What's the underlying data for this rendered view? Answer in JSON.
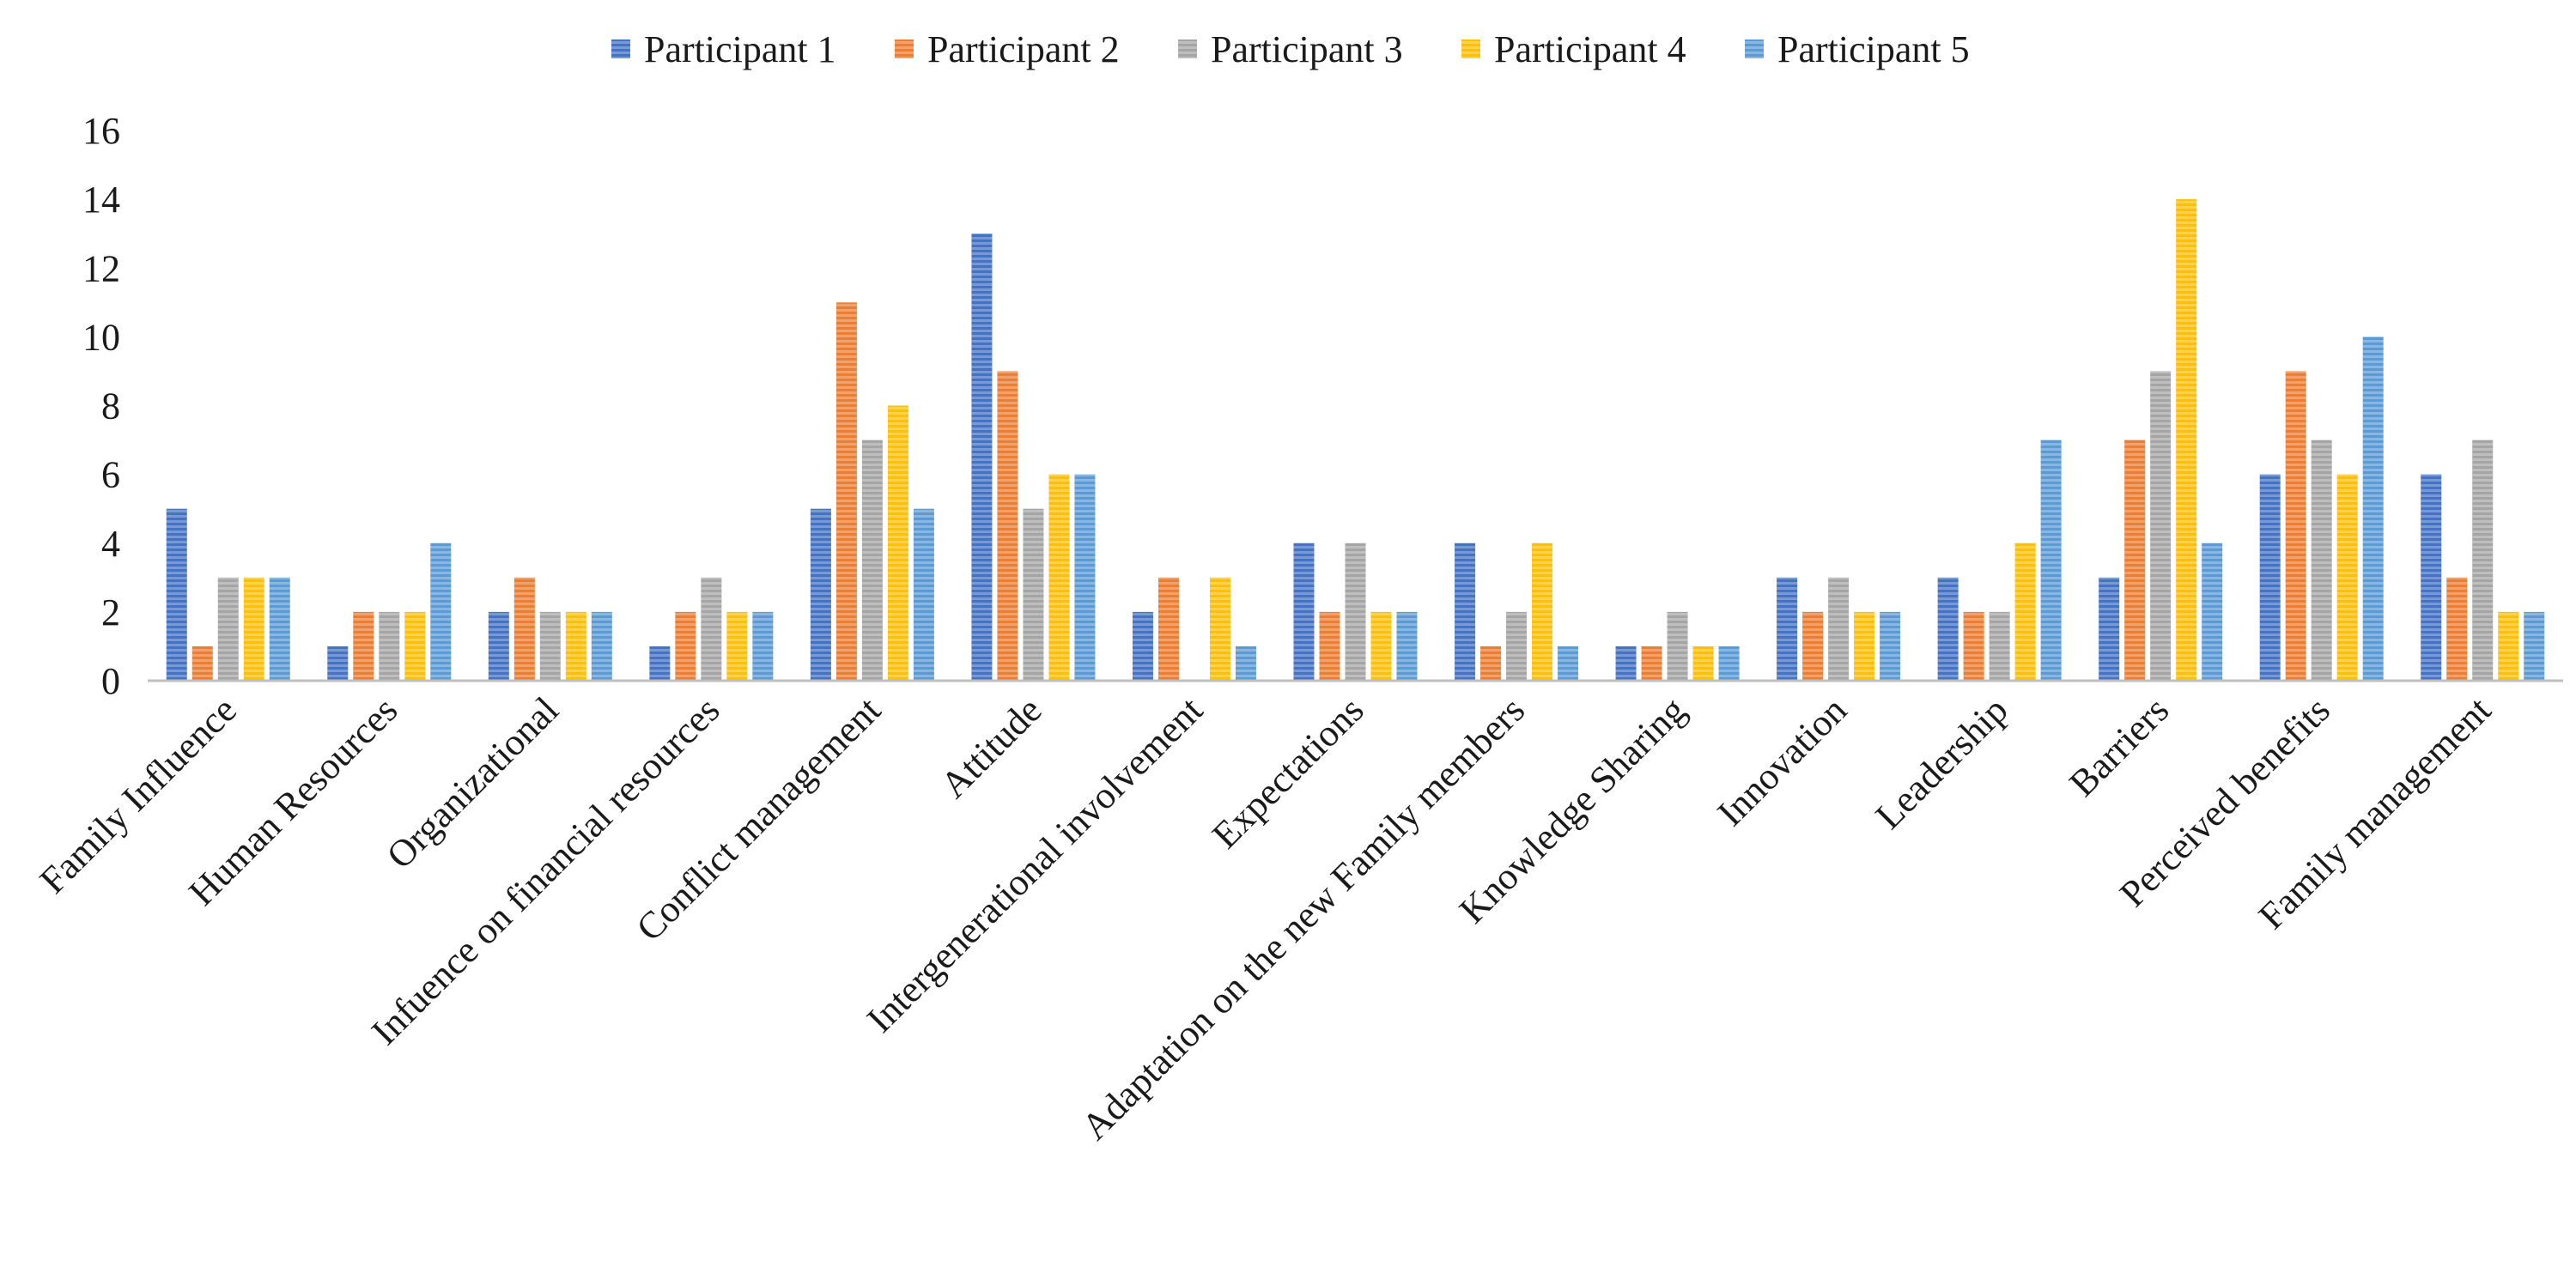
{
  "chart_data": {
    "type": "bar",
    "title": "",
    "xlabel": "",
    "ylabel": "",
    "ylim": [
      0,
      16
    ],
    "yticks": [
      0,
      2,
      4,
      6,
      8,
      10,
      12,
      14,
      16
    ],
    "legend_position": "top",
    "grid": false,
    "categories": [
      "Family Influence",
      "Human Resources",
      "Organizational",
      "Infuence on financial resources",
      "Conflict management",
      "Attitude",
      "Intergenerational involvement",
      "Expectations",
      "Adaptation on the new Family members",
      "Knowledge Sharing",
      "Innovation",
      "Leadership",
      "Barriers",
      "Perceived benefits",
      "Family management"
    ],
    "series": [
      {
        "name": "Participant 1",
        "color": "#4472C4",
        "values": [
          5,
          1,
          2,
          1,
          5,
          13,
          2,
          4,
          4,
          1,
          3,
          3,
          3,
          6,
          6
        ]
      },
      {
        "name": "Participant 2",
        "color": "#ED7D31",
        "values": [
          1,
          2,
          3,
          2,
          11,
          9,
          3,
          2,
          1,
          1,
          2,
          2,
          7,
          9,
          3
        ]
      },
      {
        "name": "Participant 3",
        "color": "#A5A5A5",
        "values": [
          3,
          2,
          2,
          3,
          7,
          5,
          0,
          4,
          2,
          2,
          3,
          2,
          9,
          7,
          7
        ]
      },
      {
        "name": "Participant 4",
        "color": "#FFC000",
        "values": [
          3,
          2,
          2,
          2,
          8,
          6,
          3,
          2,
          4,
          1,
          2,
          4,
          14,
          6,
          2
        ]
      },
      {
        "name": "Participant 5",
        "color": "#5B9BD5",
        "values": [
          3,
          4,
          2,
          2,
          5,
          6,
          1,
          2,
          1,
          1,
          2,
          7,
          4,
          10,
          2
        ]
      }
    ]
  }
}
